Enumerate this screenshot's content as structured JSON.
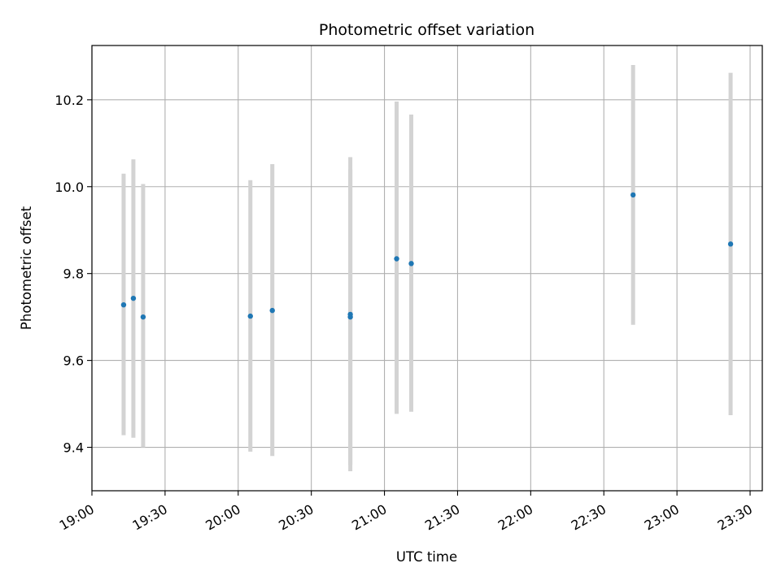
{
  "chart_data": {
    "type": "scatter",
    "title": "Photometric offset variation",
    "xlabel": "UTC time",
    "ylabel": "Photometric offset",
    "grid": true,
    "xlim": [
      "19:00",
      "23:35"
    ],
    "ylim": [
      9.3,
      10.325
    ],
    "x_ticks": [
      "19:00",
      "19:30",
      "20:00",
      "20:30",
      "21:00",
      "21:30",
      "22:00",
      "22:30",
      "23:00",
      "23:30"
    ],
    "y_ticks": [
      "9.4",
      "9.6",
      "9.8",
      "10.0",
      "10.2"
    ],
    "series": [
      {
        "points": [
          {
            "x": "19:13",
            "y": 9.728,
            "err_low": 9.428,
            "err_high": 10.03
          },
          {
            "x": "19:17",
            "y": 9.743,
            "err_low": 9.422,
            "err_high": 10.063
          },
          {
            "x": "19:21",
            "y": 9.7,
            "err_low": 9.4,
            "err_high": 10.006
          },
          {
            "x": "20:05",
            "y": 9.702,
            "err_low": 9.39,
            "err_high": 10.015
          },
          {
            "x": "20:14",
            "y": 9.715,
            "err_low": 9.38,
            "err_high": 10.052
          },
          {
            "x": "20:46",
            "y": 9.706,
            "err_low": 9.36,
            "err_high": 10.068
          },
          {
            "x": "20:46",
            "y": 9.7,
            "err_low": 9.345,
            "err_high": 10.04
          },
          {
            "x": "21:05",
            "y": 9.834,
            "err_low": 9.477,
            "err_high": 10.196
          },
          {
            "x": "21:11",
            "y": 9.823,
            "err_low": 9.482,
            "err_high": 10.166
          },
          {
            "x": "22:42",
            "y": 9.981,
            "err_low": 9.682,
            "err_high": 10.28
          },
          {
            "x": "23:22",
            "y": 9.868,
            "err_low": 9.474,
            "err_high": 10.262
          }
        ]
      }
    ],
    "colors": {
      "marker": "#1f77b4",
      "errorbar": "#d3d3d3",
      "grid": "#b0b0b0"
    }
  }
}
